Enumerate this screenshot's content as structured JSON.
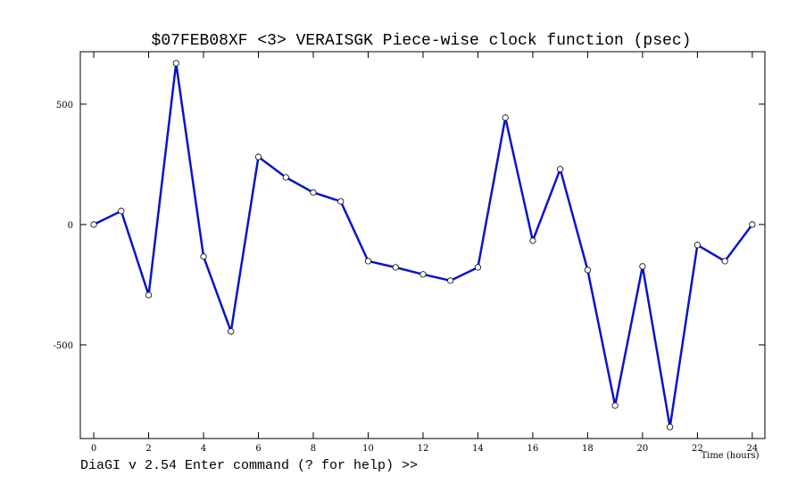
{
  "chart_data": {
    "type": "line",
    "title": "$07FEB08XF <3>  VERAISGK  Piece-wise clock function (psec)",
    "x_label": "Time (hours)",
    "series": [
      {
        "color": "#0a14c8",
        "x": [
          0,
          1,
          2,
          3,
          4,
          5,
          6,
          7,
          8,
          9,
          10,
          11,
          12,
          13,
          14,
          15,
          16,
          17,
          18,
          19,
          20,
          21,
          22,
          23,
          24
        ],
        "values": [
          0,
          56,
          -293,
          670,
          -133,
          -444,
          281,
          196,
          133,
          96,
          -152,
          -178,
          -207,
          -233,
          -178,
          444,
          -67,
          230,
          -189,
          -752,
          -174,
          -841,
          -85,
          -152,
          0
        ]
      }
    ],
    "xlim": [
      -0.49,
      24.46
    ],
    "xticks": [
      0,
      2,
      4,
      6,
      8,
      10,
      12,
      14,
      16,
      18,
      20,
      22,
      24
    ],
    "ylim": [
      -889,
      718
    ],
    "yticks": [
      -500,
      0,
      500
    ]
  },
  "prompt": "DiaGI v 2.54  Enter command (? for help) >>"
}
